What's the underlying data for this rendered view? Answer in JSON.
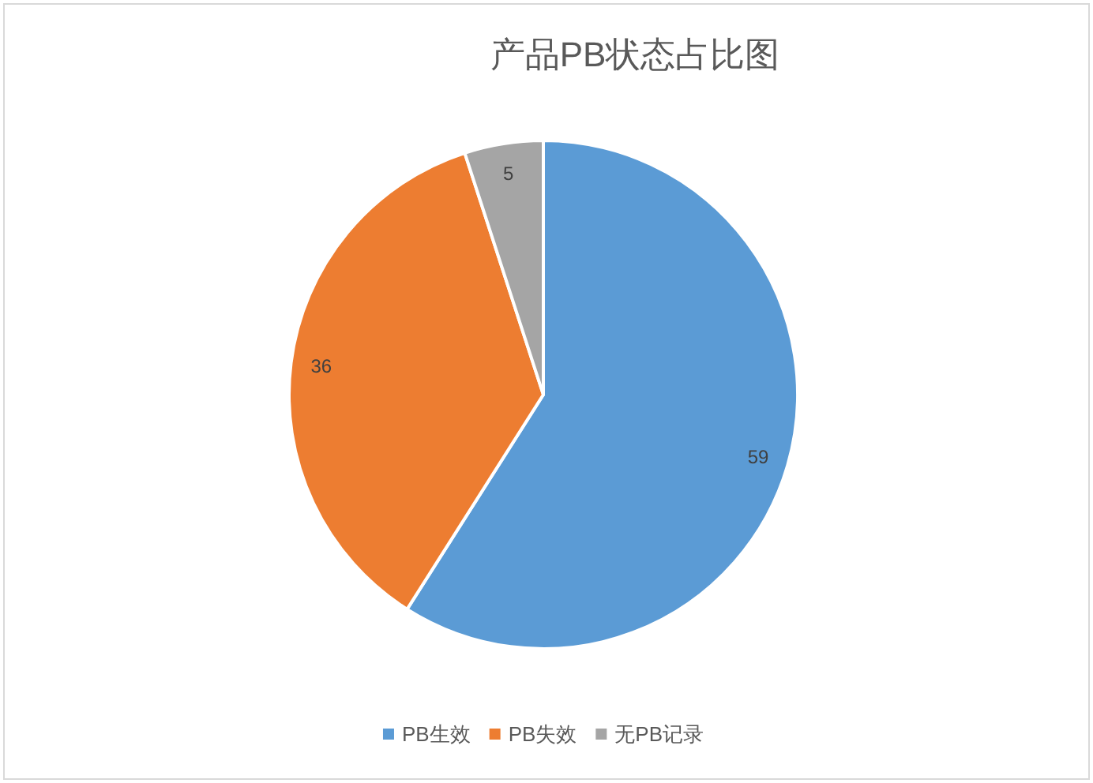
{
  "chart_data": {
    "type": "pie",
    "title": "产品PB状态占比图",
    "categories": [
      "PB生效",
      "PB失效",
      "无PB记录"
    ],
    "values": [
      59,
      36,
      5
    ],
    "colors": [
      "#5b9bd5",
      "#ed7d31",
      "#a5a5a5"
    ],
    "data_labels": true,
    "legend": "bottom"
  }
}
